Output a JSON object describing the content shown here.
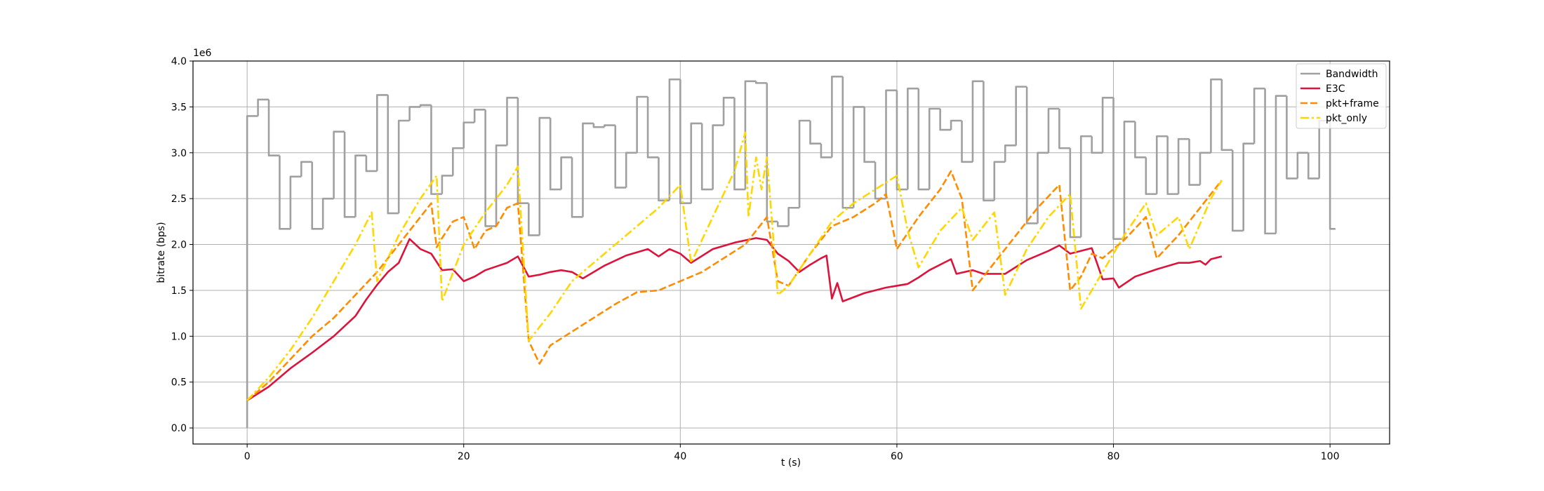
{
  "chart_data": {
    "type": "line",
    "xlabel": "t (s)",
    "ylabel": "bitrate (bps)",
    "y_offset_label": "1e6",
    "xlim": [
      -5,
      105.5
    ],
    "ylim": [
      -175000,
      4000000
    ],
    "xticks": [
      0,
      20,
      40,
      60,
      80,
      100
    ],
    "yticks": [
      {
        "value": 0,
        "label": "0.0"
      },
      {
        "value": 500000,
        "label": "0.5"
      },
      {
        "value": 1000000,
        "label": "1.0"
      },
      {
        "value": 1500000,
        "label": "1.5"
      },
      {
        "value": 2000000,
        "label": "2.0"
      },
      {
        "value": 2500000,
        "label": "2.5"
      },
      {
        "value": 3000000,
        "label": "3.0"
      },
      {
        "value": 3500000,
        "label": "3.5"
      },
      {
        "value": 4000000,
        "label": "4.0"
      }
    ],
    "grid": true,
    "legend": "upper right",
    "series": [
      {
        "name": "Bandwidth",
        "color": "#a0a0a0",
        "linestyle": "solid",
        "drawstyle": "steps-post",
        "x": [
          0,
          0,
          1,
          2,
          3,
          4,
          5,
          6,
          7,
          8,
          9,
          10,
          11,
          12,
          13,
          14,
          15,
          16,
          17,
          18,
          19,
          20,
          21,
          22,
          23,
          24,
          25,
          26,
          27,
          28,
          29,
          30,
          31,
          32,
          33,
          34,
          35,
          36,
          37,
          38,
          39,
          40,
          41,
          42,
          43,
          44,
          45,
          46,
          47,
          48,
          49,
          50,
          51,
          52,
          53,
          54,
          55,
          56,
          57,
          58,
          59,
          60,
          61,
          62,
          63,
          64,
          65,
          66,
          67,
          68,
          69,
          70,
          71,
          72,
          73,
          74,
          75,
          76,
          77,
          78,
          79,
          80,
          81,
          82,
          83,
          84,
          85,
          86,
          87,
          88,
          89,
          90,
          91,
          92,
          93,
          94,
          95,
          96,
          97,
          98,
          99,
          100,
          100.5
        ],
        "values": [
          0,
          3400000,
          3580000,
          2970000,
          2170000,
          2740000,
          2900000,
          2170000,
          2500000,
          3230000,
          2300000,
          2970000,
          2800000,
          3630000,
          2340000,
          3350000,
          3500000,
          3520000,
          2550000,
          2750000,
          3050000,
          3330000,
          3470000,
          2200000,
          3080000,
          3600000,
          2450000,
          2100000,
          3380000,
          2600000,
          2950000,
          2300000,
          3320000,
          3280000,
          3300000,
          2620000,
          3000000,
          3610000,
          2950000,
          2480000,
          3800000,
          2450000,
          3320000,
          2600000,
          3300000,
          3600000,
          2600000,
          3780000,
          3760000,
          2250000,
          2200000,
          2400000,
          3350000,
          3100000,
          2950000,
          3830000,
          2400000,
          3500000,
          2900000,
          2500000,
          3680000,
          2600000,
          3700000,
          2600000,
          3480000,
          3250000,
          3350000,
          2900000,
          3780000,
          2480000,
          2900000,
          3080000,
          3720000,
          2230000,
          3000000,
          3480000,
          3050000,
          2080000,
          3180000,
          3000000,
          3600000,
          2060000,
          3340000,
          2950000,
          2550000,
          3180000,
          2550000,
          3150000,
          2650000,
          3000000,
          3800000,
          3030000,
          2150000,
          3100000,
          3700000,
          2120000,
          3620000,
          2720000,
          3000000,
          2720000,
          3350000,
          2170000,
          2170000
        ]
      },
      {
        "name": "E3C",
        "color": "#dc143c",
        "linestyle": "solid",
        "x": [
          0,
          2,
          4,
          6,
          8,
          10,
          11,
          12,
          13,
          14,
          15,
          16,
          17,
          18,
          19,
          20,
          21,
          22,
          23,
          24,
          25,
          26,
          27,
          28,
          29,
          30,
          31,
          33,
          35,
          37,
          38,
          39,
          40,
          41,
          43,
          45,
          47,
          48,
          49,
          50,
          51,
          52,
          53,
          53.5,
          54,
          54.5,
          55,
          57,
          59,
          61,
          62,
          63,
          65,
          65.5,
          67,
          68,
          70,
          72,
          74,
          75,
          76,
          78,
          79,
          80,
          80.5,
          82,
          84,
          86,
          87,
          88,
          88.5,
          89,
          90
        ],
        "values": [
          300000,
          450000,
          650000,
          820000,
          1000000,
          1220000,
          1400000,
          1560000,
          1700000,
          1800000,
          2060000,
          1950000,
          1900000,
          1720000,
          1730000,
          1600000,
          1650000,
          1720000,
          1760000,
          1800000,
          1870000,
          1650000,
          1670000,
          1700000,
          1720000,
          1700000,
          1630000,
          1770000,
          1880000,
          1950000,
          1870000,
          1950000,
          1900000,
          1800000,
          1950000,
          2020000,
          2070000,
          2050000,
          1900000,
          1820000,
          1700000,
          1780000,
          1850000,
          1880000,
          1410000,
          1580000,
          1380000,
          1470000,
          1530000,
          1570000,
          1640000,
          1720000,
          1840000,
          1680000,
          1720000,
          1680000,
          1680000,
          1830000,
          1930000,
          1990000,
          1900000,
          1960000,
          1620000,
          1630000,
          1530000,
          1650000,
          1730000,
          1800000,
          1800000,
          1820000,
          1780000,
          1840000,
          1870000
        ]
      },
      {
        "name": "pkt+frame",
        "color": "#ff8c00",
        "linestyle": "dashed",
        "x": [
          0,
          2,
          4,
          6,
          8,
          10,
          12,
          14,
          16,
          17,
          17.5,
          18,
          19,
          20,
          21,
          22,
          23,
          24,
          25,
          26,
          27,
          28,
          30,
          32,
          34,
          36,
          38,
          40,
          42,
          44,
          46,
          48,
          49,
          50,
          52,
          54,
          56,
          58,
          59,
          60,
          62,
          64,
          65,
          66,
          67,
          69,
          71,
          73,
          75,
          76,
          77,
          78,
          79,
          81,
          83,
          84,
          86,
          88,
          90
        ],
        "values": [
          300000,
          500000,
          750000,
          1000000,
          1200000,
          1450000,
          1700000,
          2000000,
          2300000,
          2450000,
          1970000,
          2070000,
          2250000,
          2300000,
          1950000,
          2150000,
          2200000,
          2400000,
          2450000,
          950000,
          700000,
          900000,
          1050000,
          1200000,
          1350000,
          1480000,
          1500000,
          1600000,
          1700000,
          1850000,
          2000000,
          2300000,
          1600000,
          1550000,
          1900000,
          2200000,
          2300000,
          2450000,
          2550000,
          1950000,
          2300000,
          2600000,
          2800000,
          2500000,
          1500000,
          1800000,
          2100000,
          2400000,
          2650000,
          1500000,
          1650000,
          1900000,
          1850000,
          2050000,
          2300000,
          1850000,
          2100000,
          2400000,
          2700000
        ]
      },
      {
        "name": "pkt_only",
        "color": "#ffd700",
        "linestyle": "dashdot",
        "x": [
          0,
          2,
          4,
          6,
          8,
          10,
          11.5,
          12,
          14,
          16,
          17.5,
          18,
          20,
          22,
          24,
          25,
          26,
          28,
          30,
          32,
          34,
          36,
          38,
          40,
          41,
          43,
          45,
          46,
          46.3,
          47,
          47.5,
          48,
          49,
          50,
          52,
          54,
          56,
          58,
          60,
          61,
          62,
          64,
          66,
          67,
          69,
          70,
          72,
          74,
          76,
          77,
          79,
          81,
          83,
          84,
          86,
          87,
          89,
          90
        ],
        "values": [
          300000,
          550000,
          850000,
          1200000,
          1600000,
          2000000,
          2350000,
          1600000,
          2100000,
          2500000,
          2750000,
          1380000,
          2000000,
          2350000,
          2650000,
          2850000,
          950000,
          1250000,
          1600000,
          1800000,
          2000000,
          2200000,
          2400000,
          2650000,
          1800000,
          2300000,
          2800000,
          3220000,
          2300000,
          2950000,
          2600000,
          2950000,
          1450000,
          1550000,
          1900000,
          2250000,
          2450000,
          2600000,
          2750000,
          2150000,
          1750000,
          2150000,
          2400000,
          2050000,
          2350000,
          1450000,
          1950000,
          2300000,
          2550000,
          1300000,
          1700000,
          2100000,
          2450000,
          2100000,
          2300000,
          1950000,
          2500000,
          2700000
        ]
      }
    ]
  }
}
